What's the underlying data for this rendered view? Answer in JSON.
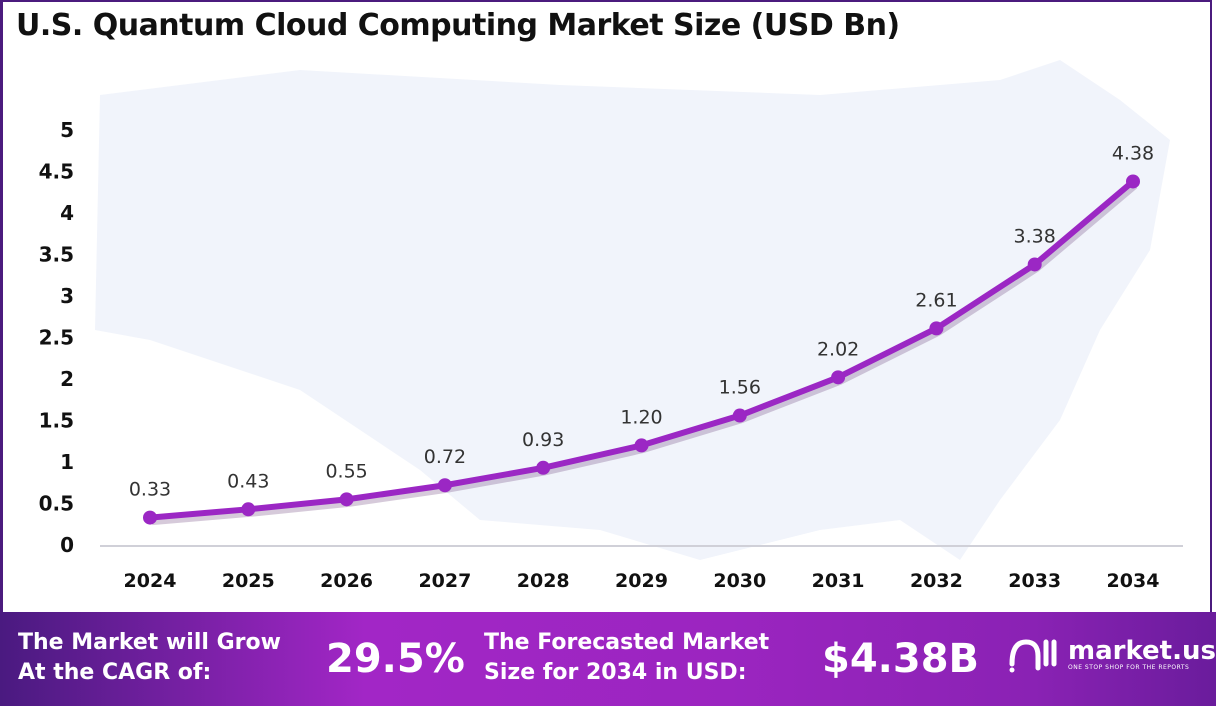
{
  "chart_data": {
    "type": "line",
    "title": "U.S. Quantum Cloud Computing Market Size (USD Bn)",
    "categories": [
      "2024",
      "2025",
      "2026",
      "2027",
      "2028",
      "2029",
      "2030",
      "2031",
      "2032",
      "2033",
      "2034"
    ],
    "values": [
      0.33,
      0.43,
      0.55,
      0.72,
      0.93,
      1.2,
      1.56,
      2.02,
      2.61,
      3.38,
      4.38
    ],
    "data_labels": [
      "0.33",
      "0.43",
      "0.55",
      "0.72",
      "0.93",
      "1.20",
      "1.56",
      "2.02",
      "2.61",
      "3.38",
      "4.38"
    ],
    "yticks": [
      "0",
      "0.5",
      "1",
      "1.5",
      "2",
      "2.5",
      "3",
      "3.5",
      "4",
      "4.5",
      "5"
    ],
    "ylim": [
      0,
      5
    ],
    "grid": false,
    "line_color": "#9b27c4"
  },
  "banner": {
    "cagr_label": [
      "The Market will Grow",
      "At the CAGR of:"
    ],
    "cagr_value": "29.5%",
    "forecast_label": [
      "The Forecasted Market",
      "Size for 2034 in USD:"
    ],
    "forecast_value": "$4.38B",
    "logo_name": "market.us",
    "logo_tagline": "ONE STOP SHOP FOR THE REPORTS"
  }
}
